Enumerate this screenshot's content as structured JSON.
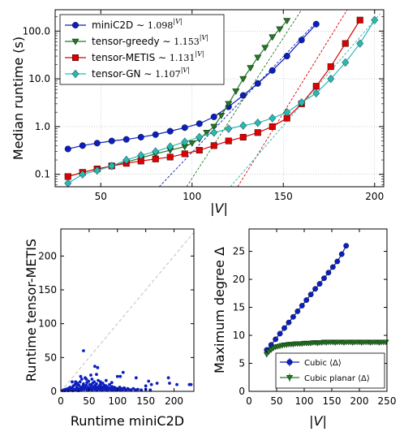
{
  "chart_data": [
    {
      "type": "line",
      "xlabel": "|V|",
      "ylabel": "Median runtime (s)",
      "yscale": "log",
      "xlim": [
        25,
        205
      ],
      "ylim": [
        0.055,
        280
      ],
      "xticks": [
        "50",
        "100",
        "150",
        "200"
      ],
      "yticks": [
        "0.1",
        "1.0",
        "10.0",
        "100.0"
      ],
      "grid": true,
      "legend_position": "top-left",
      "series": [
        {
          "name": "miniC2D ~ 1.098^|V|",
          "legend_main": "miniC2D ∼ ",
          "legend_expr": "1.098",
          "legend_sup": "|V|",
          "color": "#0b1fbf",
          "marker": "circle",
          "x": [
            32,
            40,
            48,
            56,
            64,
            72,
            80,
            88,
            96,
            104,
            112,
            120,
            128,
            136,
            144,
            152,
            160,
            168
          ],
          "y": [
            0.34,
            0.4,
            0.45,
            0.5,
            0.54,
            0.6,
            0.68,
            0.8,
            0.95,
            1.15,
            1.6,
            2.6,
            4.5,
            8.0,
            15,
            30,
            65,
            140
          ]
        },
        {
          "name": "tensor-greedy ~ 1.153^|V|",
          "legend_main": "tensor-greedy ∼ ",
          "legend_expr": "1.153",
          "legend_sup": "|V|",
          "color": "#1f7a1f",
          "marker": "triangle-down",
          "x": [
            32,
            40,
            48,
            56,
            64,
            72,
            80,
            88,
            96,
            100,
            104,
            108,
            112,
            116,
            120,
            124,
            128,
            132,
            136,
            140,
            144,
            148,
            152
          ],
          "y": [
            0.09,
            0.11,
            0.13,
            0.15,
            0.18,
            0.22,
            0.27,
            0.32,
            0.38,
            0.45,
            0.55,
            0.75,
            1.0,
            1.7,
            3.0,
            5.5,
            10,
            17,
            28,
            45,
            75,
            110,
            165
          ]
        },
        {
          "name": "tensor-METIS ~ 1.131^|V|",
          "legend_main": "tensor-METIS ∼ ",
          "legend_expr": "1.131",
          "legend_sup": "|V|",
          "color": "#dd0000",
          "marker": "square",
          "x": [
            32,
            40,
            48,
            56,
            64,
            72,
            80,
            88,
            96,
            104,
            112,
            120,
            128,
            136,
            144,
            152,
            160,
            168,
            176,
            184,
            192
          ],
          "y": [
            0.09,
            0.11,
            0.13,
            0.15,
            0.17,
            0.19,
            0.21,
            0.23,
            0.27,
            0.32,
            0.4,
            0.5,
            0.6,
            0.75,
            1.0,
            1.5,
            3.0,
            7.0,
            18,
            55,
            170
          ]
        },
        {
          "name": "tensor-GN ~ 1.107^|V|",
          "legend_main": "tensor-GN ∼ ",
          "legend_expr": "1.107",
          "legend_sup": "|V|",
          "color": "#2ab7b3",
          "marker": "diamond",
          "x": [
            32,
            40,
            48,
            56,
            64,
            72,
            80,
            88,
            96,
            104,
            112,
            120,
            128,
            136,
            144,
            152,
            160,
            168,
            176,
            184,
            192,
            200
          ],
          "y": [
            0.065,
            0.1,
            0.12,
            0.15,
            0.2,
            0.25,
            0.3,
            0.38,
            0.48,
            0.6,
            0.75,
            0.9,
            1.05,
            1.2,
            1.5,
            2.0,
            3.2,
            5.0,
            10,
            22,
            55,
            170
          ]
        }
      ],
      "fits": [
        {
          "color": "#0b1fbf",
          "x": [
            82,
            167
          ],
          "y": [
            0.055,
            140
          ]
        },
        {
          "color": "#1f7a1f",
          "x": [
            97,
            160
          ],
          "y": [
            0.055,
            280
          ]
        },
        {
          "color": "#dd0000",
          "x": [
            125,
            185
          ],
          "y": [
            0.055,
            280
          ]
        },
        {
          "color": "#2ab7b3",
          "x": [
            121,
            203
          ],
          "y": [
            0.055,
            230
          ]
        }
      ]
    },
    {
      "type": "scatter",
      "xlabel": "Runtime miniC2D",
      "ylabel": "Runtime tensor-METIS",
      "xlim": [
        0,
        235
      ],
      "ylim": [
        0,
        240
      ],
      "xticks": [
        "0",
        "50",
        "100",
        "150",
        "200"
      ],
      "yticks": [
        "0",
        "50",
        "100",
        "150",
        "200"
      ],
      "color": "#0b1fbf",
      "diagonal": true,
      "points": [
        [
          3,
          1
        ],
        [
          5,
          2
        ],
        [
          7,
          1
        ],
        [
          8,
          3
        ],
        [
          10,
          2
        ],
        [
          12,
          4
        ],
        [
          13,
          1
        ],
        [
          15,
          3
        ],
        [
          16,
          6
        ],
        [
          18,
          2
        ],
        [
          20,
          5
        ],
        [
          21,
          1
        ],
        [
          22,
          8
        ],
        [
          24,
          3
        ],
        [
          25,
          10
        ],
        [
          26,
          2
        ],
        [
          28,
          6
        ],
        [
          29,
          12
        ],
        [
          30,
          4
        ],
        [
          31,
          1
        ],
        [
          32,
          9
        ],
        [
          33,
          3
        ],
        [
          34,
          14
        ],
        [
          35,
          6
        ],
        [
          36,
          2
        ],
        [
          37,
          18
        ],
        [
          38,
          5
        ],
        [
          39,
          8
        ],
        [
          40,
          11
        ],
        [
          41,
          3
        ],
        [
          42,
          7
        ],
        [
          43,
          20
        ],
        [
          44,
          4
        ],
        [
          45,
          9
        ],
        [
          46,
          13
        ],
        [
          47,
          2
        ],
        [
          48,
          6
        ],
        [
          49,
          15
        ],
        [
          50,
          3
        ],
        [
          51,
          10
        ],
        [
          52,
          5
        ],
        [
          53,
          24
        ],
        [
          54,
          8
        ],
        [
          55,
          2
        ],
        [
          56,
          12
        ],
        [
          57,
          4
        ],
        [
          58,
          7
        ],
        [
          59,
          14
        ],
        [
          60,
          3
        ],
        [
          61,
          9
        ],
        [
          62,
          5
        ],
        [
          63,
          11
        ],
        [
          64,
          2
        ],
        [
          65,
          6
        ],
        [
          66,
          16
        ],
        [
          67,
          4
        ],
        [
          68,
          8
        ],
        [
          69,
          3
        ],
        [
          70,
          10
        ],
        [
          71,
          5
        ],
        [
          72,
          7
        ],
        [
          73,
          2
        ],
        [
          74,
          12
        ],
        [
          75,
          4
        ],
        [
          76,
          6
        ],
        [
          77,
          9
        ],
        [
          78,
          3
        ],
        [
          79,
          5
        ],
        [
          80,
          8
        ],
        [
          82,
          2
        ],
        [
          83,
          6
        ],
        [
          84,
          4
        ],
        [
          86,
          10
        ],
        [
          87,
          3
        ],
        [
          88,
          5
        ],
        [
          90,
          7
        ],
        [
          91,
          2
        ],
        [
          92,
          4
        ],
        [
          94,
          6
        ],
        [
          95,
          3
        ],
        [
          96,
          5
        ],
        [
          98,
          2
        ],
        [
          100,
          4
        ],
        [
          102,
          3
        ],
        [
          104,
          6
        ],
        [
          106,
          2
        ],
        [
          108,
          4
        ],
        [
          110,
          3
        ],
        [
          112,
          5
        ],
        [
          115,
          2
        ],
        [
          118,
          4
        ],
        [
          120,
          3
        ],
        [
          124,
          2
        ],
        [
          128,
          4
        ],
        [
          132,
          2
        ],
        [
          136,
          3
        ],
        [
          142,
          2
        ],
        [
          150,
          3
        ],
        [
          158,
          2
        ],
        [
          40,
          60
        ],
        [
          60,
          37
        ],
        [
          65,
          35
        ],
        [
          63,
          25
        ],
        [
          100,
          22
        ],
        [
          105,
          22
        ],
        [
          110,
          28
        ],
        [
          133,
          20
        ],
        [
          150,
          8
        ],
        [
          155,
          15
        ],
        [
          160,
          10
        ],
        [
          170,
          12
        ],
        [
          190,
          20
        ],
        [
          192,
          12
        ],
        [
          205,
          10
        ],
        [
          227,
          10
        ],
        [
          230,
          10
        ],
        [
          26,
          14
        ],
        [
          45,
          18
        ],
        [
          35,
          22
        ],
        [
          55,
          18
        ],
        [
          70,
          14
        ],
        [
          80,
          16
        ],
        [
          90,
          13
        ],
        [
          30,
          10
        ],
        [
          20,
          14
        ]
      ]
    },
    {
      "type": "line",
      "xlabel": "|V|",
      "ylabel": "Maximum degree Δ",
      "xlim": [
        0,
        250
      ],
      "ylim": [
        0,
        29
      ],
      "xticks": [
        "0",
        "50",
        "100",
        "150",
        "200",
        "250"
      ],
      "yticks": [
        "0",
        "5",
        "10",
        "15",
        "20",
        "25"
      ],
      "legend_position": "bottom-right",
      "series": [
        {
          "name": "Cubic ⟨Δ⟩",
          "color": "#0b1fbf",
          "marker": "circle",
          "x": [
            32,
            40,
            48,
            56,
            64,
            72,
            80,
            88,
            96,
            104,
            112,
            120,
            128,
            136,
            144,
            152,
            160,
            168,
            176
          ],
          "y": [
            7.4,
            8.3,
            9.3,
            10.3,
            11.3,
            12.3,
            13.3,
            14.3,
            15.3,
            16.3,
            17.3,
            18.3,
            19.2,
            20.2,
            21.2,
            22.2,
            23.2,
            24.5,
            26.0
          ]
        },
        {
          "name": "Cubic planar ⟨Δ⟩",
          "color": "#1f7a1f",
          "marker": "triangle-down",
          "x": [
            32,
            36,
            40,
            44,
            48,
            52,
            56,
            60,
            64,
            68,
            72,
            76,
            80,
            84,
            88,
            92,
            96,
            100,
            104,
            108,
            112,
            116,
            120,
            124,
            128,
            132,
            136,
            140,
            144,
            148,
            152,
            156,
            160,
            164,
            168,
            172,
            176,
            180,
            184,
            188,
            192,
            196,
            200,
            204,
            208,
            212,
            216,
            220,
            224,
            228,
            232,
            236,
            240,
            244,
            248
          ],
          "y": [
            6.6,
            7.1,
            7.4,
            7.7,
            7.9,
            8.0,
            8.1,
            8.2,
            8.3,
            8.3,
            8.4,
            8.4,
            8.4,
            8.5,
            8.5,
            8.5,
            8.5,
            8.6,
            8.6,
            8.6,
            8.6,
            8.7,
            8.7,
            8.6,
            8.7,
            8.7,
            8.8,
            8.7,
            8.8,
            8.8,
            8.8,
            8.7,
            8.8,
            8.8,
            8.8,
            8.7,
            8.8,
            8.8,
            8.8,
            8.7,
            8.8,
            8.8,
            8.8,
            8.7,
            8.8,
            8.8,
            8.8,
            8.7,
            8.8,
            8.8,
            8.8,
            8.7,
            8.8,
            8.8,
            8.8
          ]
        }
      ]
    }
  ]
}
